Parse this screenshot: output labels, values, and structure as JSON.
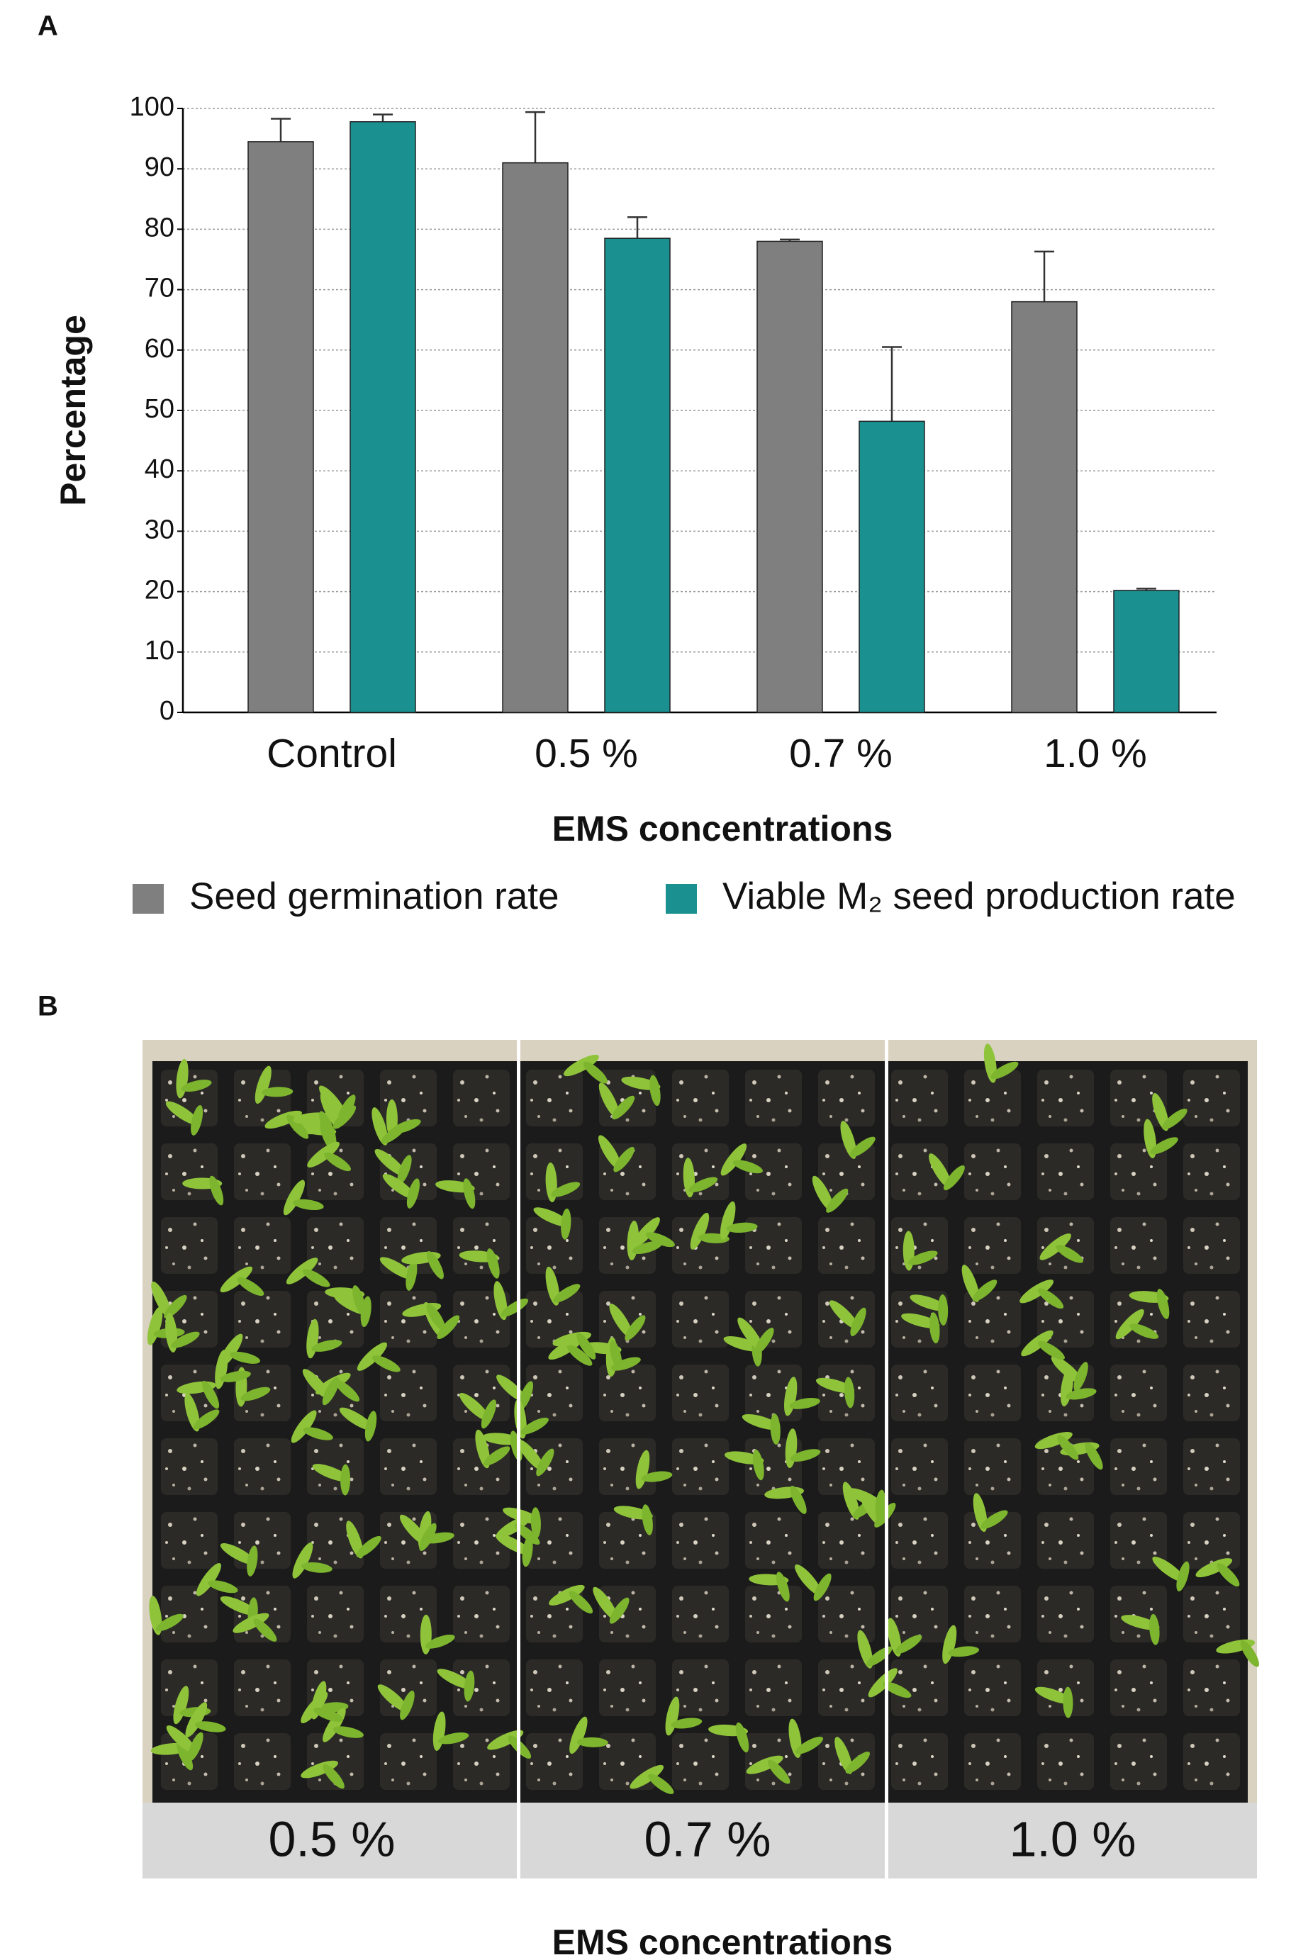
{
  "chart_data": {
    "type": "bar",
    "x_label": "EMS concentrations",
    "y_label": "Percentage",
    "categories": [
      "Control",
      "0.5 %",
      "0.7 %",
      "1.0 %"
    ],
    "series": [
      {
        "name": "Seed germination rate",
        "color": "#7f7f7f",
        "values": [
          94.5,
          91,
          78,
          68
        ],
        "errors": [
          3.8,
          8.4,
          0.3,
          8.3
        ]
      },
      {
        "name": "Viable M₂ seed production rate",
        "color": "#1a9090",
        "values": [
          97.8,
          78.5,
          48.2,
          20.2
        ],
        "errors": [
          1.2,
          3.5,
          12.3,
          0.3
        ]
      }
    ],
    "ylim": [
      0,
      100
    ],
    "yticks": [
      0,
      10,
      20,
      30,
      40,
      50,
      60,
      70,
      80,
      90,
      100
    ],
    "grid": true
  },
  "panel_labels": [
    "A",
    "B"
  ],
  "photo": {
    "labels": [
      "0.5 %",
      "0.7 %",
      "1.0 %"
    ],
    "x_label": "EMS concentrations"
  }
}
